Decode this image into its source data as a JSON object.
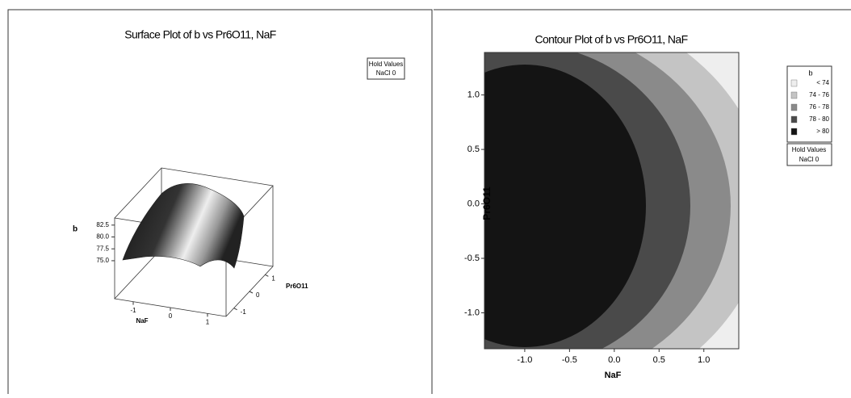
{
  "chart_data": [
    {
      "type": "surface",
      "title": "Surface Plot of b vs Pr6O11, NaF",
      "x_label": "NaF",
      "y_label": "Pr6O11",
      "z_label": "b",
      "xlim": [
        -1.5,
        1.5
      ],
      "xticks": [
        -1,
        0,
        1
      ],
      "ylim": [
        -1.5,
        1.5
      ],
      "yticks": [
        -1,
        0,
        1
      ],
      "zlim": [
        67,
        84
      ],
      "zticks": [
        {
          "value": 75,
          "label": "75.0"
        },
        77.5,
        {
          "value": 80,
          "label": "80.0"
        },
        82.5
      ],
      "hold_values": {
        "title": "Hold Values",
        "text": "NaCl  0"
      }
    },
    {
      "type": "contour",
      "title": "Contour Plot of b vs Pr6O11, NaF",
      "x_label": "NaF",
      "y_label": "Pr6O11",
      "xlim": [
        -1.45,
        1.39
      ],
      "xticks": [
        {
          "value": -1,
          "label": "-1.0"
        },
        -0.5,
        {
          "value": 0,
          "label": "0.0"
        },
        0.5,
        {
          "value": 1,
          "label": "1.0"
        }
      ],
      "ylim": [
        -1.33,
        1.39
      ],
      "yticks": [
        {
          "value": -1,
          "label": "-1.0"
        },
        -0.5,
        {
          "value": 0,
          "label": "0.0"
        },
        0.5,
        {
          "value": 1,
          "label": "1.0"
        }
      ],
      "legend": {
        "title": "b",
        "entries": [
          {
            "label": "<  74",
            "color": "#eeeeee"
          },
          {
            "label": "74 -  76",
            "color": "#c4c4c4"
          },
          {
            "label": "76 -  78",
            "color": "#8a8a8a"
          },
          {
            "label": "78 -  80",
            "color": "#4a4a4a"
          },
          {
            "label": ">  80",
            "color": "#141414"
          }
        ]
      },
      "hold_values": {
        "title": "Hold Values",
        "text": "NaCl  0"
      }
    }
  ]
}
